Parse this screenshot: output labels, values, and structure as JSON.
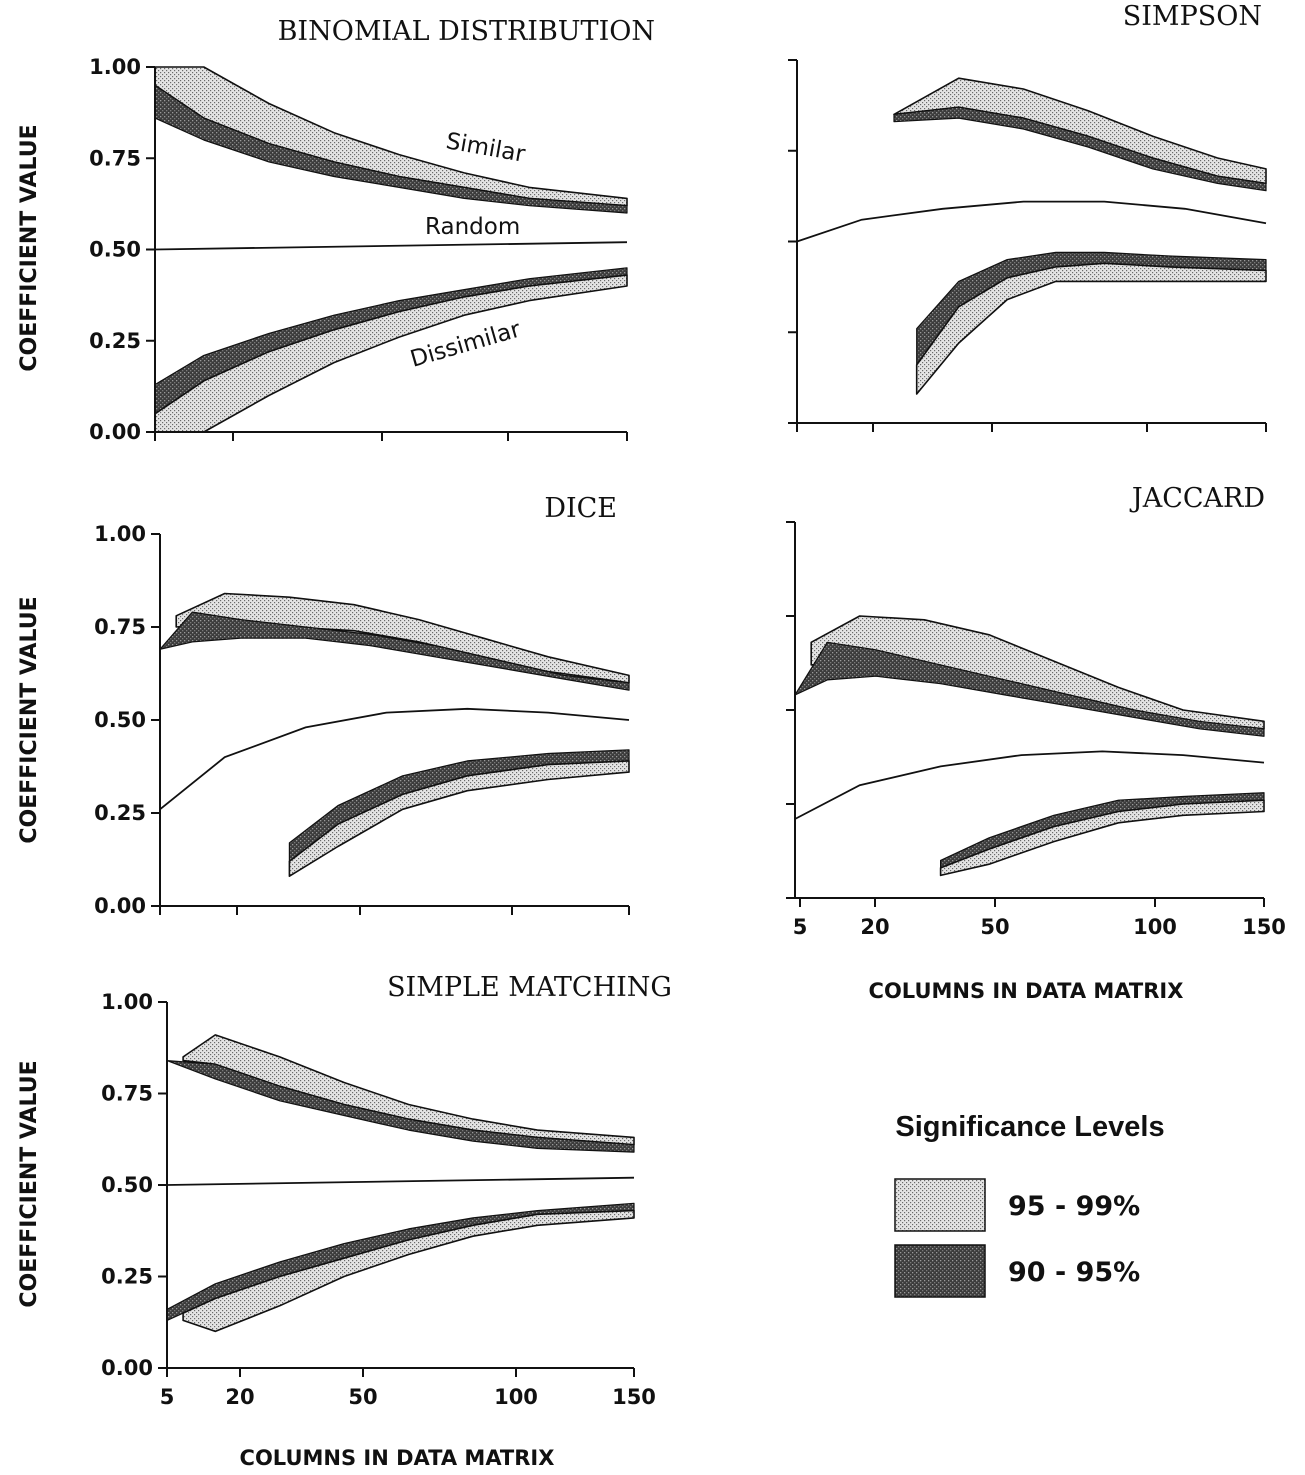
{
  "chart_data": [
    {
      "type": "area",
      "title": "BINOMIAL DISTRIBUTION",
      "ylabel": "COEFFICIENT VALUE",
      "xlabel": "",
      "xlim": [
        5,
        150
      ],
      "ylim": [
        0,
        1
      ],
      "yticks": [
        "0.00",
        "0.25",
        "0.50",
        "0.75",
        "1.00"
      ],
      "xticks": [],
      "annotations": [
        "Similar",
        "Random",
        "Dissimilar"
      ],
      "random_line": {
        "x": [
          5,
          150
        ],
        "y": [
          0.5,
          0.52
        ]
      },
      "bands": [
        {
          "group": "similar",
          "level": "95 - 99%",
          "x": [
            5,
            20,
            40,
            60,
            80,
            100,
            120,
            150
          ],
          "lower": [
            0.95,
            0.86,
            0.79,
            0.74,
            0.7,
            0.67,
            0.64,
            0.62
          ],
          "upper": [
            1.0,
            1.0,
            0.9,
            0.82,
            0.76,
            0.71,
            0.67,
            0.64
          ]
        },
        {
          "group": "similar",
          "level": "90 - 95%",
          "x": [
            5,
            20,
            40,
            60,
            80,
            100,
            120,
            150
          ],
          "lower": [
            0.86,
            0.8,
            0.74,
            0.7,
            0.67,
            0.64,
            0.62,
            0.6
          ],
          "upper": [
            0.95,
            0.86,
            0.79,
            0.74,
            0.7,
            0.67,
            0.64,
            0.62
          ]
        },
        {
          "group": "dissimilar",
          "level": "90 - 95%",
          "x": [
            5,
            20,
            40,
            60,
            80,
            100,
            120,
            150
          ],
          "lower": [
            0.05,
            0.14,
            0.22,
            0.28,
            0.33,
            0.37,
            0.4,
            0.43
          ],
          "upper": [
            0.13,
            0.21,
            0.27,
            0.32,
            0.36,
            0.39,
            0.42,
            0.45
          ]
        },
        {
          "group": "dissimilar",
          "level": "95 - 99%",
          "x": [
            5,
            20,
            40,
            60,
            80,
            100,
            120,
            150
          ],
          "lower": [
            0.0,
            0.0,
            0.1,
            0.19,
            0.26,
            0.32,
            0.36,
            0.4
          ],
          "upper": [
            0.05,
            0.14,
            0.22,
            0.28,
            0.33,
            0.37,
            0.4,
            0.43
          ]
        }
      ]
    },
    {
      "type": "area",
      "title": "SIMPSON",
      "ylabel": "",
      "xlabel": "",
      "xlim": [
        5,
        150
      ],
      "ylim": [
        0,
        1
      ],
      "yticks": [],
      "xticks": [],
      "annotations": [],
      "random_line": {
        "x": [
          5,
          25,
          50,
          75,
          100,
          125,
          150
        ],
        "y": [
          0.5,
          0.56,
          0.59,
          0.61,
          0.61,
          0.59,
          0.55
        ]
      },
      "bands": [
        {
          "group": "similar",
          "level": "95 - 99%",
          "x": [
            35,
            55,
            75,
            95,
            115,
            135,
            150
          ],
          "lower": [
            0.85,
            0.87,
            0.84,
            0.79,
            0.73,
            0.68,
            0.66
          ],
          "upper": [
            0.85,
            0.95,
            0.92,
            0.86,
            0.79,
            0.73,
            0.7
          ]
        },
        {
          "group": "similar",
          "level": "90 - 95%",
          "x": [
            35,
            55,
            75,
            95,
            115,
            135,
            150
          ],
          "lower": [
            0.83,
            0.84,
            0.81,
            0.76,
            0.7,
            0.66,
            0.64
          ],
          "upper": [
            0.85,
            0.87,
            0.84,
            0.79,
            0.73,
            0.68,
            0.66
          ]
        },
        {
          "group": "dissimilar",
          "level": "90 - 95%",
          "x": [
            42,
            55,
            70,
            85,
            100,
            120,
            150
          ],
          "lower": [
            0.16,
            0.32,
            0.4,
            0.43,
            0.44,
            0.43,
            0.42
          ],
          "upper": [
            0.26,
            0.39,
            0.45,
            0.47,
            0.47,
            0.46,
            0.45
          ]
        },
        {
          "group": "dissimilar",
          "level": "95 - 99%",
          "x": [
            42,
            55,
            70,
            85,
            100,
            120,
            150
          ],
          "lower": [
            0.08,
            0.22,
            0.34,
            0.39,
            0.39,
            0.39,
            0.39
          ],
          "upper": [
            0.16,
            0.32,
            0.4,
            0.43,
            0.44,
            0.43,
            0.42
          ]
        }
      ]
    },
    {
      "type": "area",
      "title": "DICE",
      "ylabel": "COEFFICIENT VALUE",
      "xlabel": "",
      "xlim": [
        5,
        150
      ],
      "ylim": [
        0,
        1
      ],
      "yticks": [
        "0.00",
        "0.25",
        "0.50",
        "0.75",
        "1.00"
      ],
      "xticks": [],
      "annotations": [],
      "random_line": {
        "x": [
          5,
          25,
          50,
          75,
          100,
          125,
          150
        ],
        "y": [
          0.26,
          0.4,
          0.48,
          0.52,
          0.53,
          0.52,
          0.5
        ]
      },
      "bands": [
        {
          "group": "similar",
          "level": "95 - 99%",
          "x": [
            10,
            25,
            45,
            65,
            85,
            105,
            125,
            150
          ],
          "lower": [
            0.75,
            0.76,
            0.75,
            0.74,
            0.71,
            0.67,
            0.63,
            0.6
          ],
          "upper": [
            0.78,
            0.84,
            0.83,
            0.81,
            0.77,
            0.72,
            0.67,
            0.62
          ]
        },
        {
          "group": "similar",
          "level": "90 - 95%",
          "x": [
            5,
            15,
            30,
            50,
            70,
            90,
            110,
            130,
            150
          ],
          "lower": [
            0.69,
            0.71,
            0.72,
            0.72,
            0.7,
            0.67,
            0.64,
            0.61,
            0.58
          ],
          "upper": [
            0.69,
            0.79,
            0.77,
            0.75,
            0.73,
            0.7,
            0.66,
            0.62,
            0.6
          ]
        },
        {
          "group": "dissimilar",
          "level": "90 - 95%",
          "x": [
            45,
            60,
            80,
            100,
            125,
            150
          ],
          "lower": [
            0.12,
            0.22,
            0.3,
            0.35,
            0.38,
            0.39
          ],
          "upper": [
            0.17,
            0.27,
            0.35,
            0.39,
            0.41,
            0.42
          ]
        },
        {
          "group": "dissimilar",
          "level": "95 - 99%",
          "x": [
            45,
            60,
            80,
            100,
            125,
            150
          ],
          "lower": [
            0.08,
            0.16,
            0.26,
            0.31,
            0.34,
            0.36
          ],
          "upper": [
            0.12,
            0.22,
            0.3,
            0.35,
            0.38,
            0.39
          ]
        }
      ]
    },
    {
      "type": "area",
      "title": "JACCARD",
      "ylabel": "",
      "xlabel": "COLUMNS IN DATA MATRIX",
      "xlim": [
        5,
        150
      ],
      "ylim": [
        0,
        1
      ],
      "yticks": [],
      "xticks": [
        "5",
        "20",
        "50",
        "100",
        "150"
      ],
      "annotations": [],
      "random_line": {
        "x": [
          5,
          25,
          50,
          75,
          100,
          125,
          150
        ],
        "y": [
          0.21,
          0.3,
          0.35,
          0.38,
          0.39,
          0.38,
          0.36
        ]
      },
      "bands": [
        {
          "group": "similar",
          "level": "95 - 99%",
          "x": [
            10,
            25,
            45,
            65,
            85,
            105,
            125,
            150
          ],
          "lower": [
            0.62,
            0.63,
            0.61,
            0.58,
            0.54,
            0.5,
            0.47,
            0.45
          ],
          "upper": [
            0.68,
            0.75,
            0.74,
            0.7,
            0.63,
            0.56,
            0.5,
            0.47
          ]
        },
        {
          "group": "similar",
          "level": "90 - 95%",
          "x": [
            5,
            15,
            30,
            50,
            70,
            90,
            110,
            130,
            150
          ],
          "lower": [
            0.54,
            0.58,
            0.59,
            0.57,
            0.54,
            0.51,
            0.48,
            0.45,
            0.43
          ],
          "upper": [
            0.54,
            0.68,
            0.66,
            0.62,
            0.58,
            0.54,
            0.5,
            0.47,
            0.45
          ]
        },
        {
          "group": "dissimilar",
          "level": "90 - 95%",
          "x": [
            50,
            65,
            85,
            105,
            125,
            150
          ],
          "lower": [
            0.08,
            0.13,
            0.19,
            0.23,
            0.25,
            0.26
          ],
          "upper": [
            0.1,
            0.16,
            0.22,
            0.26,
            0.27,
            0.28
          ]
        },
        {
          "group": "dissimilar",
          "level": "95 - 99%",
          "x": [
            50,
            65,
            85,
            105,
            125,
            150
          ],
          "lower": [
            0.06,
            0.09,
            0.15,
            0.2,
            0.22,
            0.23
          ],
          "upper": [
            0.08,
            0.13,
            0.19,
            0.23,
            0.25,
            0.26
          ]
        }
      ]
    },
    {
      "type": "area",
      "title": "SIMPLE MATCHING",
      "ylabel": "COEFFICIENT VALUE",
      "xlabel": "COLUMNS IN DATA MATRIX",
      "xlim": [
        5,
        150
      ],
      "ylim": [
        0,
        1
      ],
      "yticks": [
        "0.00",
        "0.25",
        "0.50",
        "0.75",
        "1.00"
      ],
      "xticks": [
        "5",
        "20",
        "50",
        "100",
        "150"
      ],
      "annotations": [],
      "random_line": {
        "x": [
          5,
          150
        ],
        "y": [
          0.5,
          0.52
        ]
      },
      "bands": [
        {
          "group": "similar",
          "level": "95 - 99%",
          "x": [
            10,
            20,
            40,
            60,
            80,
            100,
            120,
            150
          ],
          "lower": [
            0.84,
            0.83,
            0.77,
            0.72,
            0.68,
            0.65,
            0.63,
            0.61
          ],
          "upper": [
            0.85,
            0.91,
            0.85,
            0.78,
            0.72,
            0.68,
            0.65,
            0.63
          ]
        },
        {
          "group": "similar",
          "level": "90 - 95%",
          "x": [
            5,
            20,
            40,
            60,
            80,
            100,
            120,
            150
          ],
          "lower": [
            0.84,
            0.79,
            0.73,
            0.69,
            0.65,
            0.62,
            0.6,
            0.59
          ],
          "upper": [
            0.84,
            0.83,
            0.77,
            0.72,
            0.68,
            0.65,
            0.63,
            0.61
          ]
        },
        {
          "group": "dissimilar",
          "level": "90 - 95%",
          "x": [
            5,
            20,
            40,
            60,
            80,
            100,
            120,
            150
          ],
          "lower": [
            0.13,
            0.19,
            0.25,
            0.3,
            0.35,
            0.39,
            0.42,
            0.43
          ],
          "upper": [
            0.16,
            0.23,
            0.29,
            0.34,
            0.38,
            0.41,
            0.43,
            0.45
          ]
        },
        {
          "group": "dissimilar",
          "level": "95 - 99%",
          "x": [
            10,
            20,
            40,
            60,
            80,
            100,
            120,
            150
          ],
          "lower": [
            0.13,
            0.1,
            0.17,
            0.25,
            0.31,
            0.36,
            0.39,
            0.41
          ],
          "upper": [
            0.15,
            0.19,
            0.25,
            0.3,
            0.35,
            0.39,
            0.42,
            0.43
          ]
        }
      ]
    }
  ],
  "legend": {
    "title": "Significance Levels",
    "items": [
      {
        "label": "95 - 99%",
        "pattern": "light-stipple"
      },
      {
        "label": "90 - 95%",
        "pattern": "dark-stipple"
      }
    ]
  },
  "colors": {
    "ink": "#111111",
    "light_fill": "#e2e2e2",
    "dark_fill": "#4a4a4a",
    "background": "#ffffff"
  }
}
